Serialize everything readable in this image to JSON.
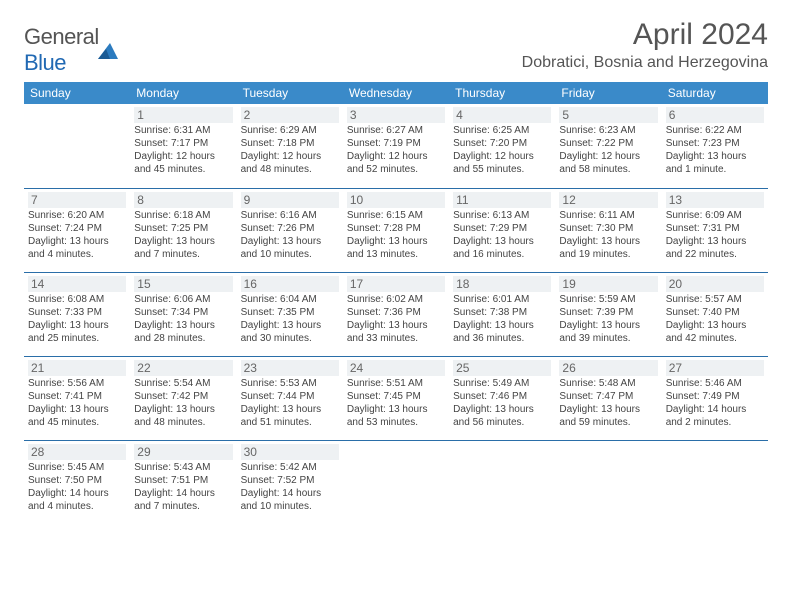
{
  "brand": {
    "text1": "General",
    "text2": "Blue"
  },
  "title": "April 2024",
  "location": "Dobratici, Bosnia and Herzegovina",
  "colors": {
    "header_bg": "#3a8ac9",
    "header_text": "#ffffff",
    "border": "#2a6ea8",
    "daynum_bg": "#eef1f3",
    "body_text": "#444444",
    "title_text": "#555555"
  },
  "weekdays": [
    "Sunday",
    "Monday",
    "Tuesday",
    "Wednesday",
    "Thursday",
    "Friday",
    "Saturday"
  ],
  "weeks": [
    [
      null,
      {
        "n": "1",
        "sr": "Sunrise: 6:31 AM",
        "ss": "Sunset: 7:17 PM",
        "dl": "Daylight: 12 hours and 45 minutes."
      },
      {
        "n": "2",
        "sr": "Sunrise: 6:29 AM",
        "ss": "Sunset: 7:18 PM",
        "dl": "Daylight: 12 hours and 48 minutes."
      },
      {
        "n": "3",
        "sr": "Sunrise: 6:27 AM",
        "ss": "Sunset: 7:19 PM",
        "dl": "Daylight: 12 hours and 52 minutes."
      },
      {
        "n": "4",
        "sr": "Sunrise: 6:25 AM",
        "ss": "Sunset: 7:20 PM",
        "dl": "Daylight: 12 hours and 55 minutes."
      },
      {
        "n": "5",
        "sr": "Sunrise: 6:23 AM",
        "ss": "Sunset: 7:22 PM",
        "dl": "Daylight: 12 hours and 58 minutes."
      },
      {
        "n": "6",
        "sr": "Sunrise: 6:22 AM",
        "ss": "Sunset: 7:23 PM",
        "dl": "Daylight: 13 hours and 1 minute."
      }
    ],
    [
      {
        "n": "7",
        "sr": "Sunrise: 6:20 AM",
        "ss": "Sunset: 7:24 PM",
        "dl": "Daylight: 13 hours and 4 minutes."
      },
      {
        "n": "8",
        "sr": "Sunrise: 6:18 AM",
        "ss": "Sunset: 7:25 PM",
        "dl": "Daylight: 13 hours and 7 minutes."
      },
      {
        "n": "9",
        "sr": "Sunrise: 6:16 AM",
        "ss": "Sunset: 7:26 PM",
        "dl": "Daylight: 13 hours and 10 minutes."
      },
      {
        "n": "10",
        "sr": "Sunrise: 6:15 AM",
        "ss": "Sunset: 7:28 PM",
        "dl": "Daylight: 13 hours and 13 minutes."
      },
      {
        "n": "11",
        "sr": "Sunrise: 6:13 AM",
        "ss": "Sunset: 7:29 PM",
        "dl": "Daylight: 13 hours and 16 minutes."
      },
      {
        "n": "12",
        "sr": "Sunrise: 6:11 AM",
        "ss": "Sunset: 7:30 PM",
        "dl": "Daylight: 13 hours and 19 minutes."
      },
      {
        "n": "13",
        "sr": "Sunrise: 6:09 AM",
        "ss": "Sunset: 7:31 PM",
        "dl": "Daylight: 13 hours and 22 minutes."
      }
    ],
    [
      {
        "n": "14",
        "sr": "Sunrise: 6:08 AM",
        "ss": "Sunset: 7:33 PM",
        "dl": "Daylight: 13 hours and 25 minutes."
      },
      {
        "n": "15",
        "sr": "Sunrise: 6:06 AM",
        "ss": "Sunset: 7:34 PM",
        "dl": "Daylight: 13 hours and 28 minutes."
      },
      {
        "n": "16",
        "sr": "Sunrise: 6:04 AM",
        "ss": "Sunset: 7:35 PM",
        "dl": "Daylight: 13 hours and 30 minutes."
      },
      {
        "n": "17",
        "sr": "Sunrise: 6:02 AM",
        "ss": "Sunset: 7:36 PM",
        "dl": "Daylight: 13 hours and 33 minutes."
      },
      {
        "n": "18",
        "sr": "Sunrise: 6:01 AM",
        "ss": "Sunset: 7:38 PM",
        "dl": "Daylight: 13 hours and 36 minutes."
      },
      {
        "n": "19",
        "sr": "Sunrise: 5:59 AM",
        "ss": "Sunset: 7:39 PM",
        "dl": "Daylight: 13 hours and 39 minutes."
      },
      {
        "n": "20",
        "sr": "Sunrise: 5:57 AM",
        "ss": "Sunset: 7:40 PM",
        "dl": "Daylight: 13 hours and 42 minutes."
      }
    ],
    [
      {
        "n": "21",
        "sr": "Sunrise: 5:56 AM",
        "ss": "Sunset: 7:41 PM",
        "dl": "Daylight: 13 hours and 45 minutes."
      },
      {
        "n": "22",
        "sr": "Sunrise: 5:54 AM",
        "ss": "Sunset: 7:42 PM",
        "dl": "Daylight: 13 hours and 48 minutes."
      },
      {
        "n": "23",
        "sr": "Sunrise: 5:53 AM",
        "ss": "Sunset: 7:44 PM",
        "dl": "Daylight: 13 hours and 51 minutes."
      },
      {
        "n": "24",
        "sr": "Sunrise: 5:51 AM",
        "ss": "Sunset: 7:45 PM",
        "dl": "Daylight: 13 hours and 53 minutes."
      },
      {
        "n": "25",
        "sr": "Sunrise: 5:49 AM",
        "ss": "Sunset: 7:46 PM",
        "dl": "Daylight: 13 hours and 56 minutes."
      },
      {
        "n": "26",
        "sr": "Sunrise: 5:48 AM",
        "ss": "Sunset: 7:47 PM",
        "dl": "Daylight: 13 hours and 59 minutes."
      },
      {
        "n": "27",
        "sr": "Sunrise: 5:46 AM",
        "ss": "Sunset: 7:49 PM",
        "dl": "Daylight: 14 hours and 2 minutes."
      }
    ],
    [
      {
        "n": "28",
        "sr": "Sunrise: 5:45 AM",
        "ss": "Sunset: 7:50 PM",
        "dl": "Daylight: 14 hours and 4 minutes."
      },
      {
        "n": "29",
        "sr": "Sunrise: 5:43 AM",
        "ss": "Sunset: 7:51 PM",
        "dl": "Daylight: 14 hours and 7 minutes."
      },
      {
        "n": "30",
        "sr": "Sunrise: 5:42 AM",
        "ss": "Sunset: 7:52 PM",
        "dl": "Daylight: 14 hours and 10 minutes."
      },
      null,
      null,
      null,
      null
    ]
  ]
}
